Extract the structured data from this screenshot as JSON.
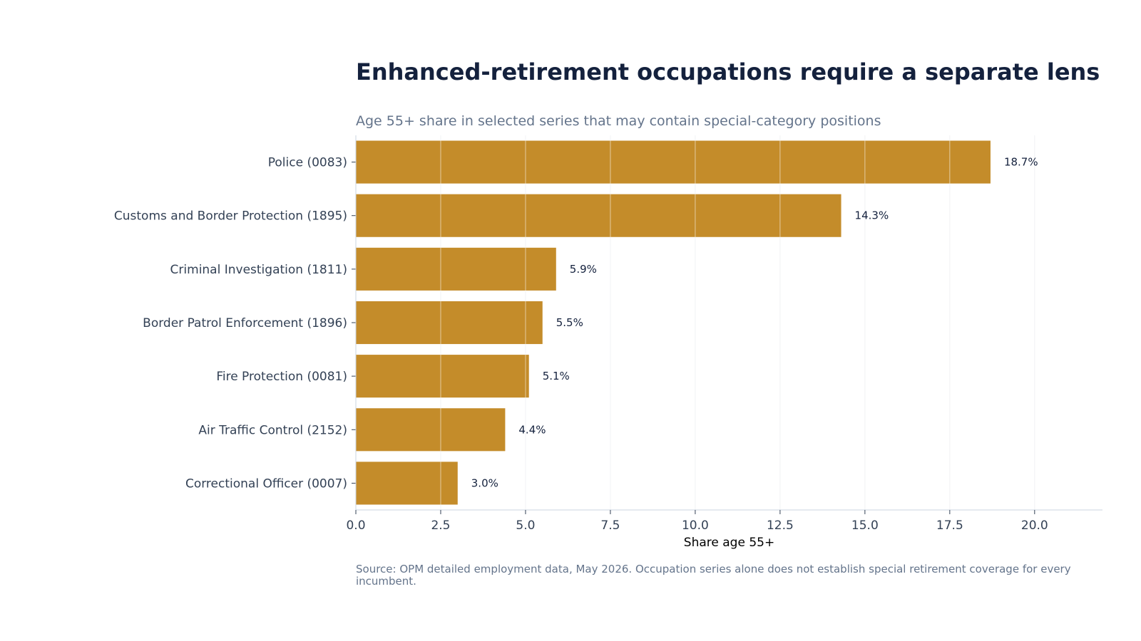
{
  "chart_data": {
    "type": "bar",
    "orientation": "horizontal",
    "title": "Enhanced-retirement occupations require a separate lens",
    "subtitle": "Age 55+ share in selected series that may contain special-category positions",
    "xlabel": "Share age 55+",
    "ylabel": "",
    "categories": [
      "Police (0083)",
      "Customs and Border Protection (1895)",
      "Criminal Investigation (1811)",
      "Border Patrol Enforcement (1896)",
      "Fire Protection (0081)",
      "Air Traffic Control (2152)",
      "Correctional Officer (0007)"
    ],
    "values": [
      18.7,
      14.3,
      5.9,
      5.5,
      5.1,
      4.4,
      3.0
    ],
    "value_labels": [
      "18.7%",
      "14.3%",
      "5.9%",
      "5.5%",
      "5.1%",
      "4.4%",
      "3.0%"
    ],
    "xlim": [
      0,
      22
    ],
    "xticks": [
      0,
      2.5,
      5,
      7.5,
      10,
      12.5,
      15,
      17.5,
      20
    ],
    "xtick_labels": [
      "0.0",
      "2.5",
      "5.0",
      "7.5",
      "10.0",
      "12.5",
      "15.0",
      "17.5",
      "20.0"
    ],
    "grid": "vertical",
    "bar_color": "#c48c2a",
    "grid_color": "#e5e7eb",
    "source": "Source: OPM detailed employment data, May 2026. Occupation series alone does not establish special retirement coverage for every incumbent."
  }
}
